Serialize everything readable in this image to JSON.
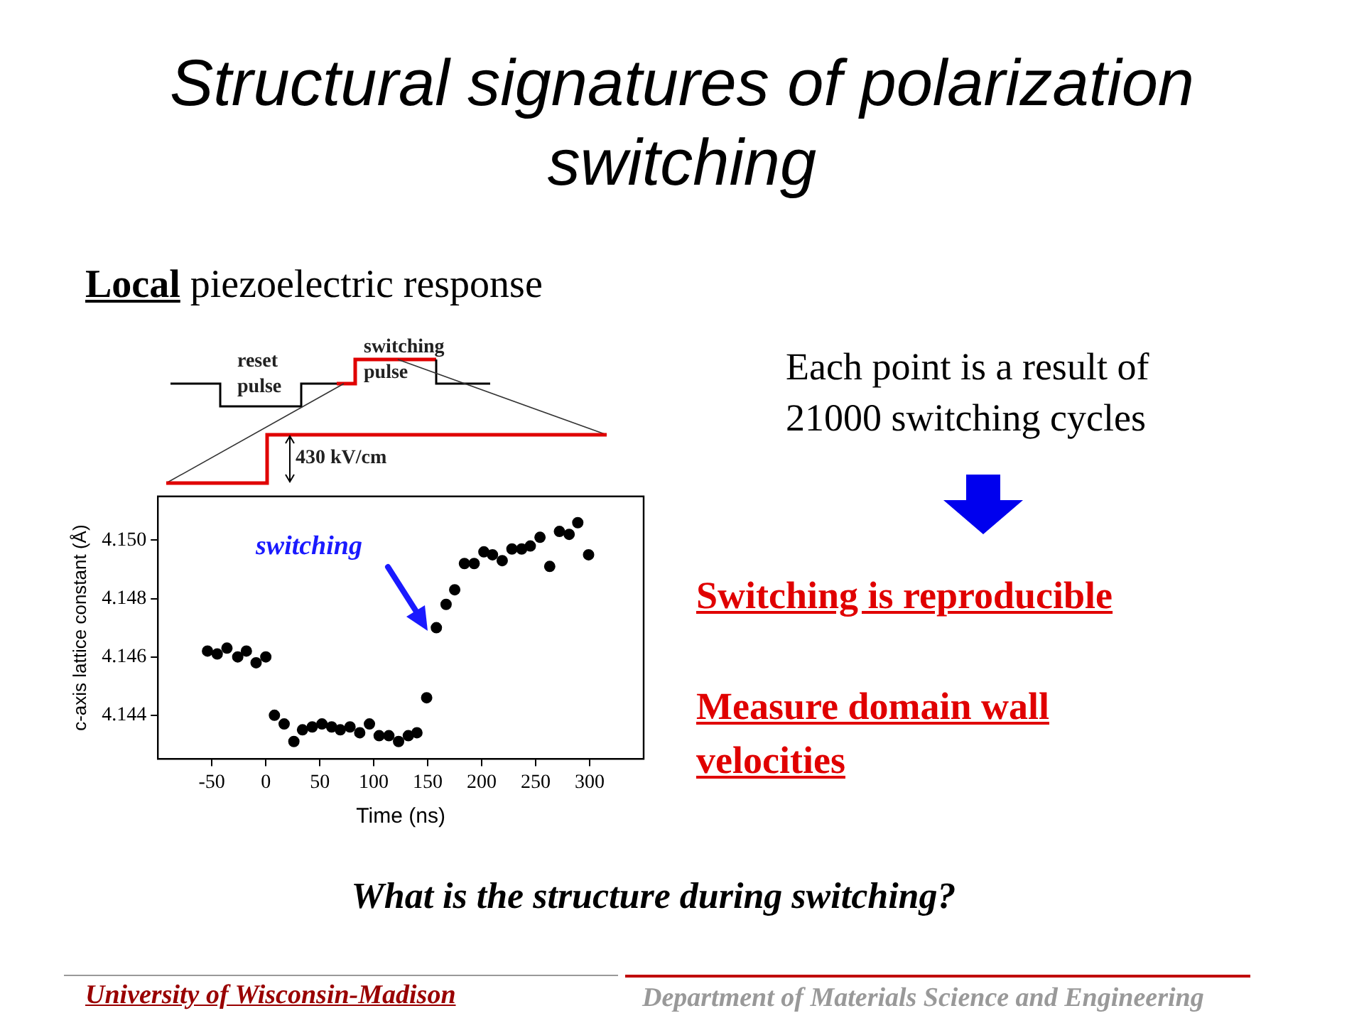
{
  "chart_data": {
    "type": "scatter",
    "title": "Structural signatures of polarization switching",
    "subtitle": "Local piezoelectric response",
    "xlabel": "Time (ns)",
    "ylabel": "c-axis lattice constant (Å)",
    "x": [
      -54,
      -45,
      -36,
      -26,
      -18,
      -9,
      0,
      8,
      17,
      26,
      34,
      43,
      52,
      61,
      69,
      78,
      87,
      96,
      105,
      114,
      123,
      132,
      140,
      149,
      158,
      167,
      175,
      184,
      193,
      202,
      210,
      219,
      228,
      237,
      245,
      254,
      263,
      272,
      281,
      289,
      299
    ],
    "series": [
      {
        "color": "#000000",
        "values": [
          4.1462,
          4.1461,
          4.1463,
          4.146,
          4.1462,
          4.1458,
          4.146,
          4.144,
          4.1437,
          4.1431,
          4.1435,
          4.1436,
          4.1437,
          4.1436,
          4.1435,
          4.1436,
          4.1434,
          4.1437,
          4.1433,
          4.1433,
          4.1431,
          4.1433,
          4.1434,
          4.1446,
          4.147,
          4.1478,
          4.1483,
          4.1492,
          4.1492,
          4.1496,
          4.1495,
          4.1493,
          4.1497,
          4.1497,
          4.1498,
          4.1501,
          4.1491,
          4.1503,
          4.1502,
          4.1506,
          4.1495
        ]
      }
    ],
    "xlim": [
      -100,
      350
    ],
    "xticks": [
      -50,
      0,
      50,
      100,
      150,
      200,
      250,
      300
    ],
    "ylim": [
      4.1425,
      4.1515
    ],
    "yticks": [
      {
        "value": 4.144,
        "label": "4.144"
      },
      {
        "value": 4.146,
        "label": "4.146"
      },
      {
        "value": 4.148,
        "label": "4.148"
      },
      {
        "value": 4.15,
        "label": "4.150"
      }
    ],
    "grid": false,
    "legend": false,
    "marker": "circle",
    "annotations": [
      "reset pulse",
      "switching pulse",
      "430 kV/cm",
      "switching",
      "Each point is a result of 21000 switching cycles",
      "Switching is reproducible",
      "Measure domain wall velocities",
      "What is the structure during switching?",
      "University of Wisconsin-Madison",
      "Department of Materials Science and Engineering"
    ]
  }
}
